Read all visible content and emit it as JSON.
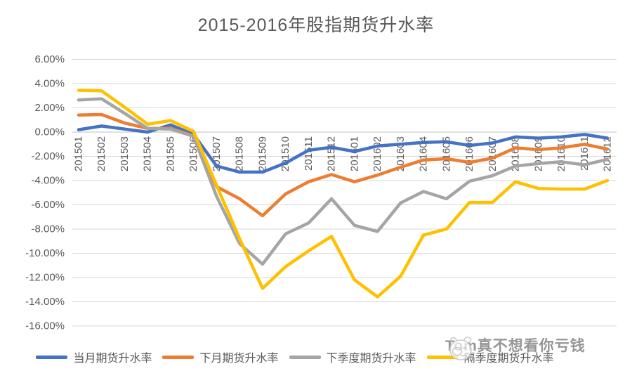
{
  "title": "2015-2016年股指期货升水率",
  "watermark": {
    "text": "Tom真不想看你亏钱",
    "icon": "doodle-face-icon"
  },
  "colors": {
    "grid": "#d9d9d9",
    "axis_line": "#bfbfbf",
    "tick_label": "#595959",
    "title_text": "#595959",
    "watermark_gray": "#a6a6a6"
  },
  "chart_data": {
    "type": "line",
    "title": "2015-2016年股指期货升水率",
    "categories": [
      "201501",
      "201502",
      "201503",
      "201504",
      "201505",
      "201506",
      "201507",
      "201508",
      "201509",
      "201510",
      "201511",
      "201512",
      "201601",
      "201602",
      "201603",
      "201604",
      "201605",
      "201606",
      "201607",
      "201608",
      "201609",
      "201610",
      "201611",
      "201612"
    ],
    "y_axis": {
      "min": -16,
      "max": 6,
      "step": 2,
      "tick_format": "percent_2dp",
      "tick_labels": [
        "6.00%",
        "4.00%",
        "2.00%",
        "0.00%",
        "-2.00%",
        "-4.00%",
        "-6.00%",
        "-8.00%",
        "-10.00%",
        "-12.00%",
        "-14.00%",
        "-16.00%"
      ]
    },
    "grid": true,
    "legend_position": "bottom",
    "series": [
      {
        "name": "当月期货升水率",
        "color": "#4472c4",
        "values": [
          0.2,
          0.5,
          0.25,
          0.0,
          0.6,
          -0.2,
          -2.8,
          -3.3,
          -3.3,
          -2.55,
          -1.5,
          -1.25,
          -1.6,
          -1.15,
          -1.0,
          -0.85,
          -0.8,
          -1.1,
          -0.9,
          -0.4,
          -0.5,
          -0.4,
          -0.2,
          -0.5
        ]
      },
      {
        "name": "下月期货升水率",
        "color": "#ed7d31",
        "values": [
          1.4,
          1.45,
          0.75,
          0.3,
          0.3,
          -0.3,
          -4.5,
          -5.5,
          -6.9,
          -5.1,
          -4.1,
          -3.5,
          -4.1,
          -3.55,
          -2.9,
          -2.3,
          -2.2,
          -2.5,
          -2.15,
          -1.3,
          -1.45,
          -1.3,
          -1.0,
          -1.4
        ]
      },
      {
        "name": "下季度期货升水率",
        "color": "#a5a5a5",
        "values": [
          2.65,
          2.75,
          1.55,
          0.3,
          0.25,
          -0.35,
          -5.3,
          -9.2,
          -10.9,
          -8.4,
          -7.5,
          -5.5,
          -7.7,
          -8.2,
          -5.85,
          -4.9,
          -5.5,
          -4.05,
          -3.6,
          -2.8,
          -2.6,
          -2.45,
          -2.7,
          -2.25
        ]
      },
      {
        "name": "隔季度期货升水率",
        "color": "#ffc000",
        "values": [
          3.45,
          3.4,
          2.05,
          0.65,
          0.95,
          0.05,
          -4.4,
          -8.8,
          -12.9,
          -11.1,
          -9.8,
          -8.6,
          -12.2,
          -13.6,
          -11.9,
          -8.5,
          -8.0,
          -5.8,
          -5.8,
          -4.1,
          -4.65,
          -4.7,
          -4.7,
          -4.0
        ]
      }
    ]
  }
}
